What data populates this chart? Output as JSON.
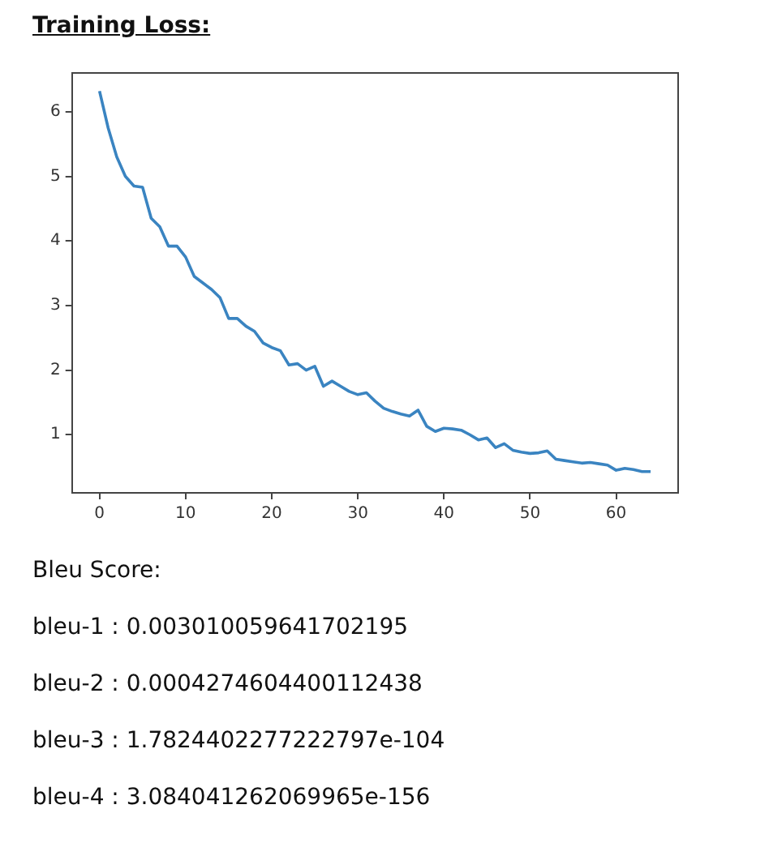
{
  "chart_data": {
    "type": "line",
    "title": "Training Loss:",
    "x": [
      0,
      1,
      2,
      3,
      4,
      5,
      6,
      7,
      8,
      9,
      10,
      11,
      12,
      13,
      14,
      15,
      16,
      17,
      18,
      19,
      20,
      21,
      22,
      23,
      24,
      25,
      26,
      27,
      28,
      29,
      30,
      31,
      32,
      33,
      34,
      35,
      36,
      37,
      38,
      39,
      40,
      41,
      42,
      43,
      44,
      45,
      46,
      47,
      48,
      49,
      50,
      51,
      52,
      53,
      54,
      55,
      56,
      57,
      58,
      59,
      60,
      61,
      62,
      63,
      64
    ],
    "series": [
      {
        "color": "#3a84c1",
        "values": [
          6.32,
          5.75,
          5.3,
          5.0,
          4.85,
          4.83,
          4.35,
          4.22,
          3.92,
          3.92,
          3.75,
          3.45,
          3.35,
          3.25,
          3.12,
          2.8,
          2.8,
          2.68,
          2.6,
          2.42,
          2.35,
          2.3,
          2.08,
          2.1,
          2.0,
          2.06,
          1.75,
          1.83,
          1.75,
          1.67,
          1.62,
          1.65,
          1.52,
          1.41,
          1.36,
          1.32,
          1.29,
          1.38,
          1.13,
          1.05,
          1.1,
          1.09,
          1.07,
          1.0,
          0.92,
          0.95,
          0.8,
          0.86,
          0.76,
          0.73,
          0.71,
          0.72,
          0.75,
          0.62,
          0.6,
          0.58,
          0.56,
          0.57,
          0.55,
          0.53,
          0.45,
          0.48,
          0.46,
          0.43,
          0.43
        ]
      }
    ],
    "xlim": [
      -3.2,
      67.2
    ],
    "xticks": [
      0,
      10,
      20,
      30,
      40,
      50,
      60
    ],
    "ylim": [
      0.1,
      6.6
    ],
    "yticks": [
      1,
      2,
      3,
      4,
      5,
      6
    ],
    "grid": false,
    "legend": false,
    "marker": "none",
    "line_style": "solid",
    "annotations": [
      "Bleu Score:",
      "bleu-1 : 0.003010059641702195",
      "bleu-2 : 0.0004274604400112438",
      "bleu-3 : 1.7824402277222797e-104",
      "bleu-4 : 3.084041262069965e-156"
    ]
  }
}
